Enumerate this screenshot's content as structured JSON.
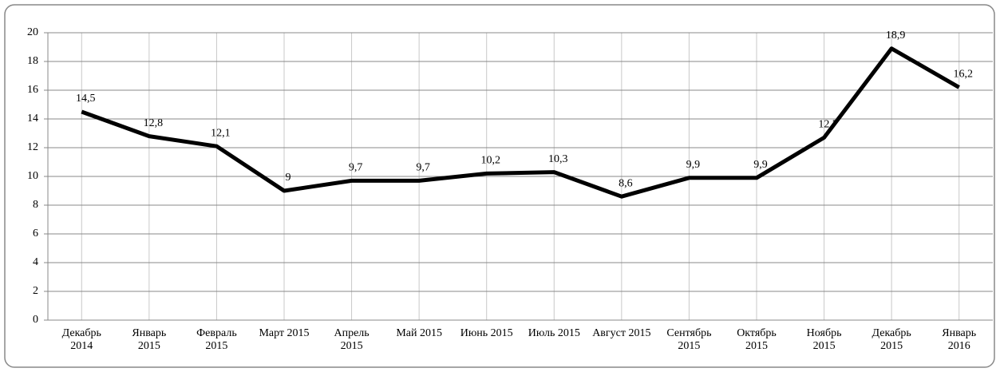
{
  "chart_data": {
    "type": "line",
    "categories": [
      "Декабрь 2014",
      "Январь 2015",
      "Февраль 2015",
      "Март 2015",
      "Апрель 2015",
      "Май 2015",
      "Июнь 2015",
      "Июль 2015",
      "Август 2015",
      "Сентябрь 2015",
      "Октябрь 2015",
      "Ноябрь 2015",
      "Декабрь 2015",
      "Январь 2016"
    ],
    "series": [
      {
        "name": null,
        "color": "#000000",
        "values": [
          14.5,
          12.8,
          12.1,
          9,
          9.7,
          9.7,
          10.2,
          10.3,
          8.6,
          9.9,
          9.9,
          12.7,
          18.9,
          16.2
        ],
        "value_labels": [
          "14,5",
          "12,8",
          "12,1",
          "9",
          "9,7",
          "9,7",
          "10,2",
          "10,3",
          "8,6",
          "9,9",
          "9,9",
          "12,7",
          "18,9",
          "16,2"
        ]
      }
    ],
    "ylim": [
      0,
      20
    ],
    "yticks": [
      0,
      2,
      4,
      6,
      8,
      10,
      12,
      14,
      16,
      18,
      20
    ],
    "grid": true
  }
}
